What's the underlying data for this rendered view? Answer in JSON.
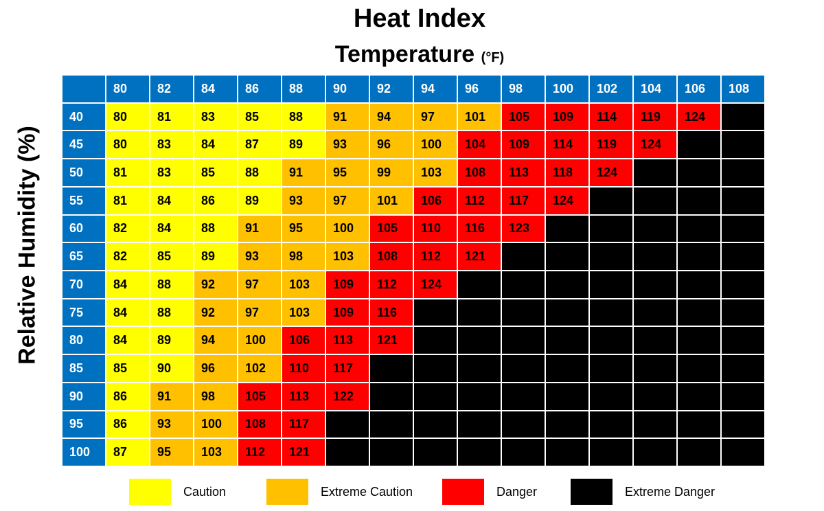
{
  "chart_data": {
    "type": "heatmap",
    "title": "Heat Index",
    "subtitle": "Temperature",
    "subtitle_unit": "(°F)",
    "ylabel": "Relative Humidity  (%)",
    "x": [
      "80",
      "82",
      "84",
      "86",
      "88",
      "90",
      "92",
      "94",
      "96",
      "98",
      "100",
      "102",
      "104",
      "106",
      "108"
    ],
    "y": [
      "40",
      "45",
      "50",
      "55",
      "60",
      "65",
      "70",
      "75",
      "80",
      "85",
      "90",
      "95",
      "100"
    ],
    "values": [
      [
        80,
        81,
        83,
        85,
        88,
        91,
        94,
        97,
        101,
        105,
        109,
        114,
        119,
        124,
        null
      ],
      [
        80,
        83,
        84,
        87,
        89,
        93,
        96,
        100,
        104,
        109,
        114,
        119,
        124,
        null,
        null
      ],
      [
        81,
        83,
        85,
        88,
        91,
        95,
        99,
        103,
        108,
        113,
        118,
        124,
        null,
        null,
        null
      ],
      [
        81,
        84,
        86,
        89,
        93,
        97,
        101,
        106,
        112,
        117,
        124,
        null,
        null,
        null,
        null
      ],
      [
        82,
        84,
        88,
        91,
        95,
        100,
        105,
        110,
        116,
        123,
        null,
        null,
        null,
        null,
        null
      ],
      [
        82,
        85,
        89,
        93,
        98,
        103,
        108,
        112,
        121,
        null,
        null,
        null,
        null,
        null,
        null
      ],
      [
        84,
        88,
        92,
        97,
        103,
        109,
        112,
        124,
        null,
        null,
        null,
        null,
        null,
        null,
        null
      ],
      [
        84,
        88,
        92,
        97,
        103,
        109,
        116,
        null,
        null,
        null,
        null,
        null,
        null,
        null,
        null
      ],
      [
        84,
        89,
        94,
        100,
        106,
        113,
        121,
        null,
        null,
        null,
        null,
        null,
        null,
        null,
        null
      ],
      [
        85,
        90,
        96,
        102,
        110,
        117,
        null,
        null,
        null,
        null,
        null,
        null,
        null,
        null,
        null
      ],
      [
        86,
        91,
        98,
        105,
        113,
        122,
        null,
        null,
        null,
        null,
        null,
        null,
        null,
        null,
        null
      ],
      [
        86,
        93,
        100,
        108,
        117,
        null,
        null,
        null,
        null,
        null,
        null,
        null,
        null,
        null,
        null
      ],
      [
        87,
        95,
        103,
        112,
        121,
        null,
        null,
        null,
        null,
        null,
        null,
        null,
        null,
        null,
        null
      ]
    ],
    "categories": [
      {
        "name": "Caution",
        "max": 90,
        "color": "#ffff00"
      },
      {
        "name": "Extreme Caution",
        "max": 103,
        "color": "#ffc000"
      },
      {
        "name": "Danger",
        "max": 124,
        "color": "#ff0000"
      },
      {
        "name": "Extreme Danger",
        "max": null,
        "color": "#000000"
      }
    ],
    "header_color": "#0070c0"
  },
  "legend": [
    {
      "label": "Caution",
      "color": "#ffff00"
    },
    {
      "label": "Extreme Caution",
      "color": "#ffc000"
    },
    {
      "label": "Danger",
      "color": "#ff0000"
    },
    {
      "label": "Extreme Danger",
      "color": "#000000"
    }
  ]
}
